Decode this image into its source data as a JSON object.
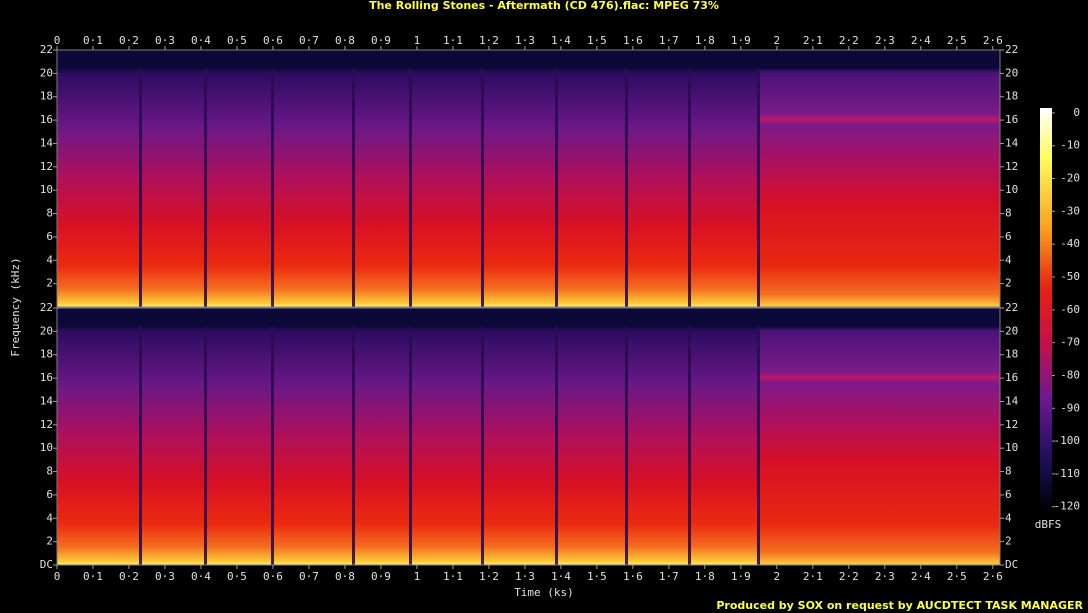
{
  "chart_data": {
    "type": "spectrogram",
    "title": "The Rolling Stones - Aftermath (CD 476).flac: MPEG 73%",
    "xlabel": "Time (ks)",
    "ylabel": "Frequency (kHz)",
    "xlim": [
      0,
      2.62
    ],
    "xticks": [
      0,
      {
        "value": 0.1,
        "label": "0·1"
      },
      {
        "value": 0.2,
        "label": "0·2"
      },
      {
        "value": 0.3,
        "label": "0·3"
      },
      {
        "value": 0.4,
        "label": "0·4"
      },
      {
        "value": 0.5,
        "label": "0·5"
      },
      {
        "value": 0.6,
        "label": "0·6"
      },
      {
        "value": 0.7,
        "label": "0·7"
      },
      {
        "value": 0.8,
        "label": "0·8"
      },
      {
        "value": 0.9,
        "label": "0·9"
      },
      1,
      {
        "value": 1.1,
        "label": "1·1"
      },
      {
        "value": 1.2,
        "label": "1·2"
      },
      {
        "value": 1.3,
        "label": "1·3"
      },
      {
        "value": 1.4,
        "label": "1·4"
      },
      {
        "value": 1.5,
        "label": "1·5"
      },
      {
        "value": 1.6,
        "label": "1·6"
      },
      {
        "value": 1.7,
        "label": "1·7"
      },
      {
        "value": 1.8,
        "label": "1·8"
      },
      {
        "value": 1.9,
        "label": "1·9"
      },
      2,
      {
        "value": 2.1,
        "label": "2·1"
      },
      {
        "value": 2.2,
        "label": "2·2"
      },
      {
        "value": 2.3,
        "label": "2·3"
      },
      {
        "value": 2.4,
        "label": "2·4"
      },
      {
        "value": 2.5,
        "label": "2·5"
      },
      {
        "value": 2.6,
        "label": "2·6"
      }
    ],
    "ylim": [
      0,
      22
    ],
    "panels": [
      {
        "yticks": [
          2,
          4,
          6,
          8,
          10,
          12,
          14,
          16,
          18,
          20,
          22
        ]
      },
      {
        "yticks": [
          {
            "value": 0,
            "label": "DC"
          },
          2,
          4,
          6,
          8,
          10,
          12,
          14,
          16,
          18,
          20,
          22
        ]
      }
    ],
    "colorbar": {
      "label": "dBFS",
      "lim": [
        -121,
        1.5
      ],
      "ticks": [
        0,
        -10,
        -20,
        -30,
        -40,
        -50,
        -60,
        -70,
        -80,
        -90,
        -100,
        -110,
        -120
      ]
    },
    "credit": "Produced by SOX on request by AUCDTECT TASK MANAGER"
  }
}
